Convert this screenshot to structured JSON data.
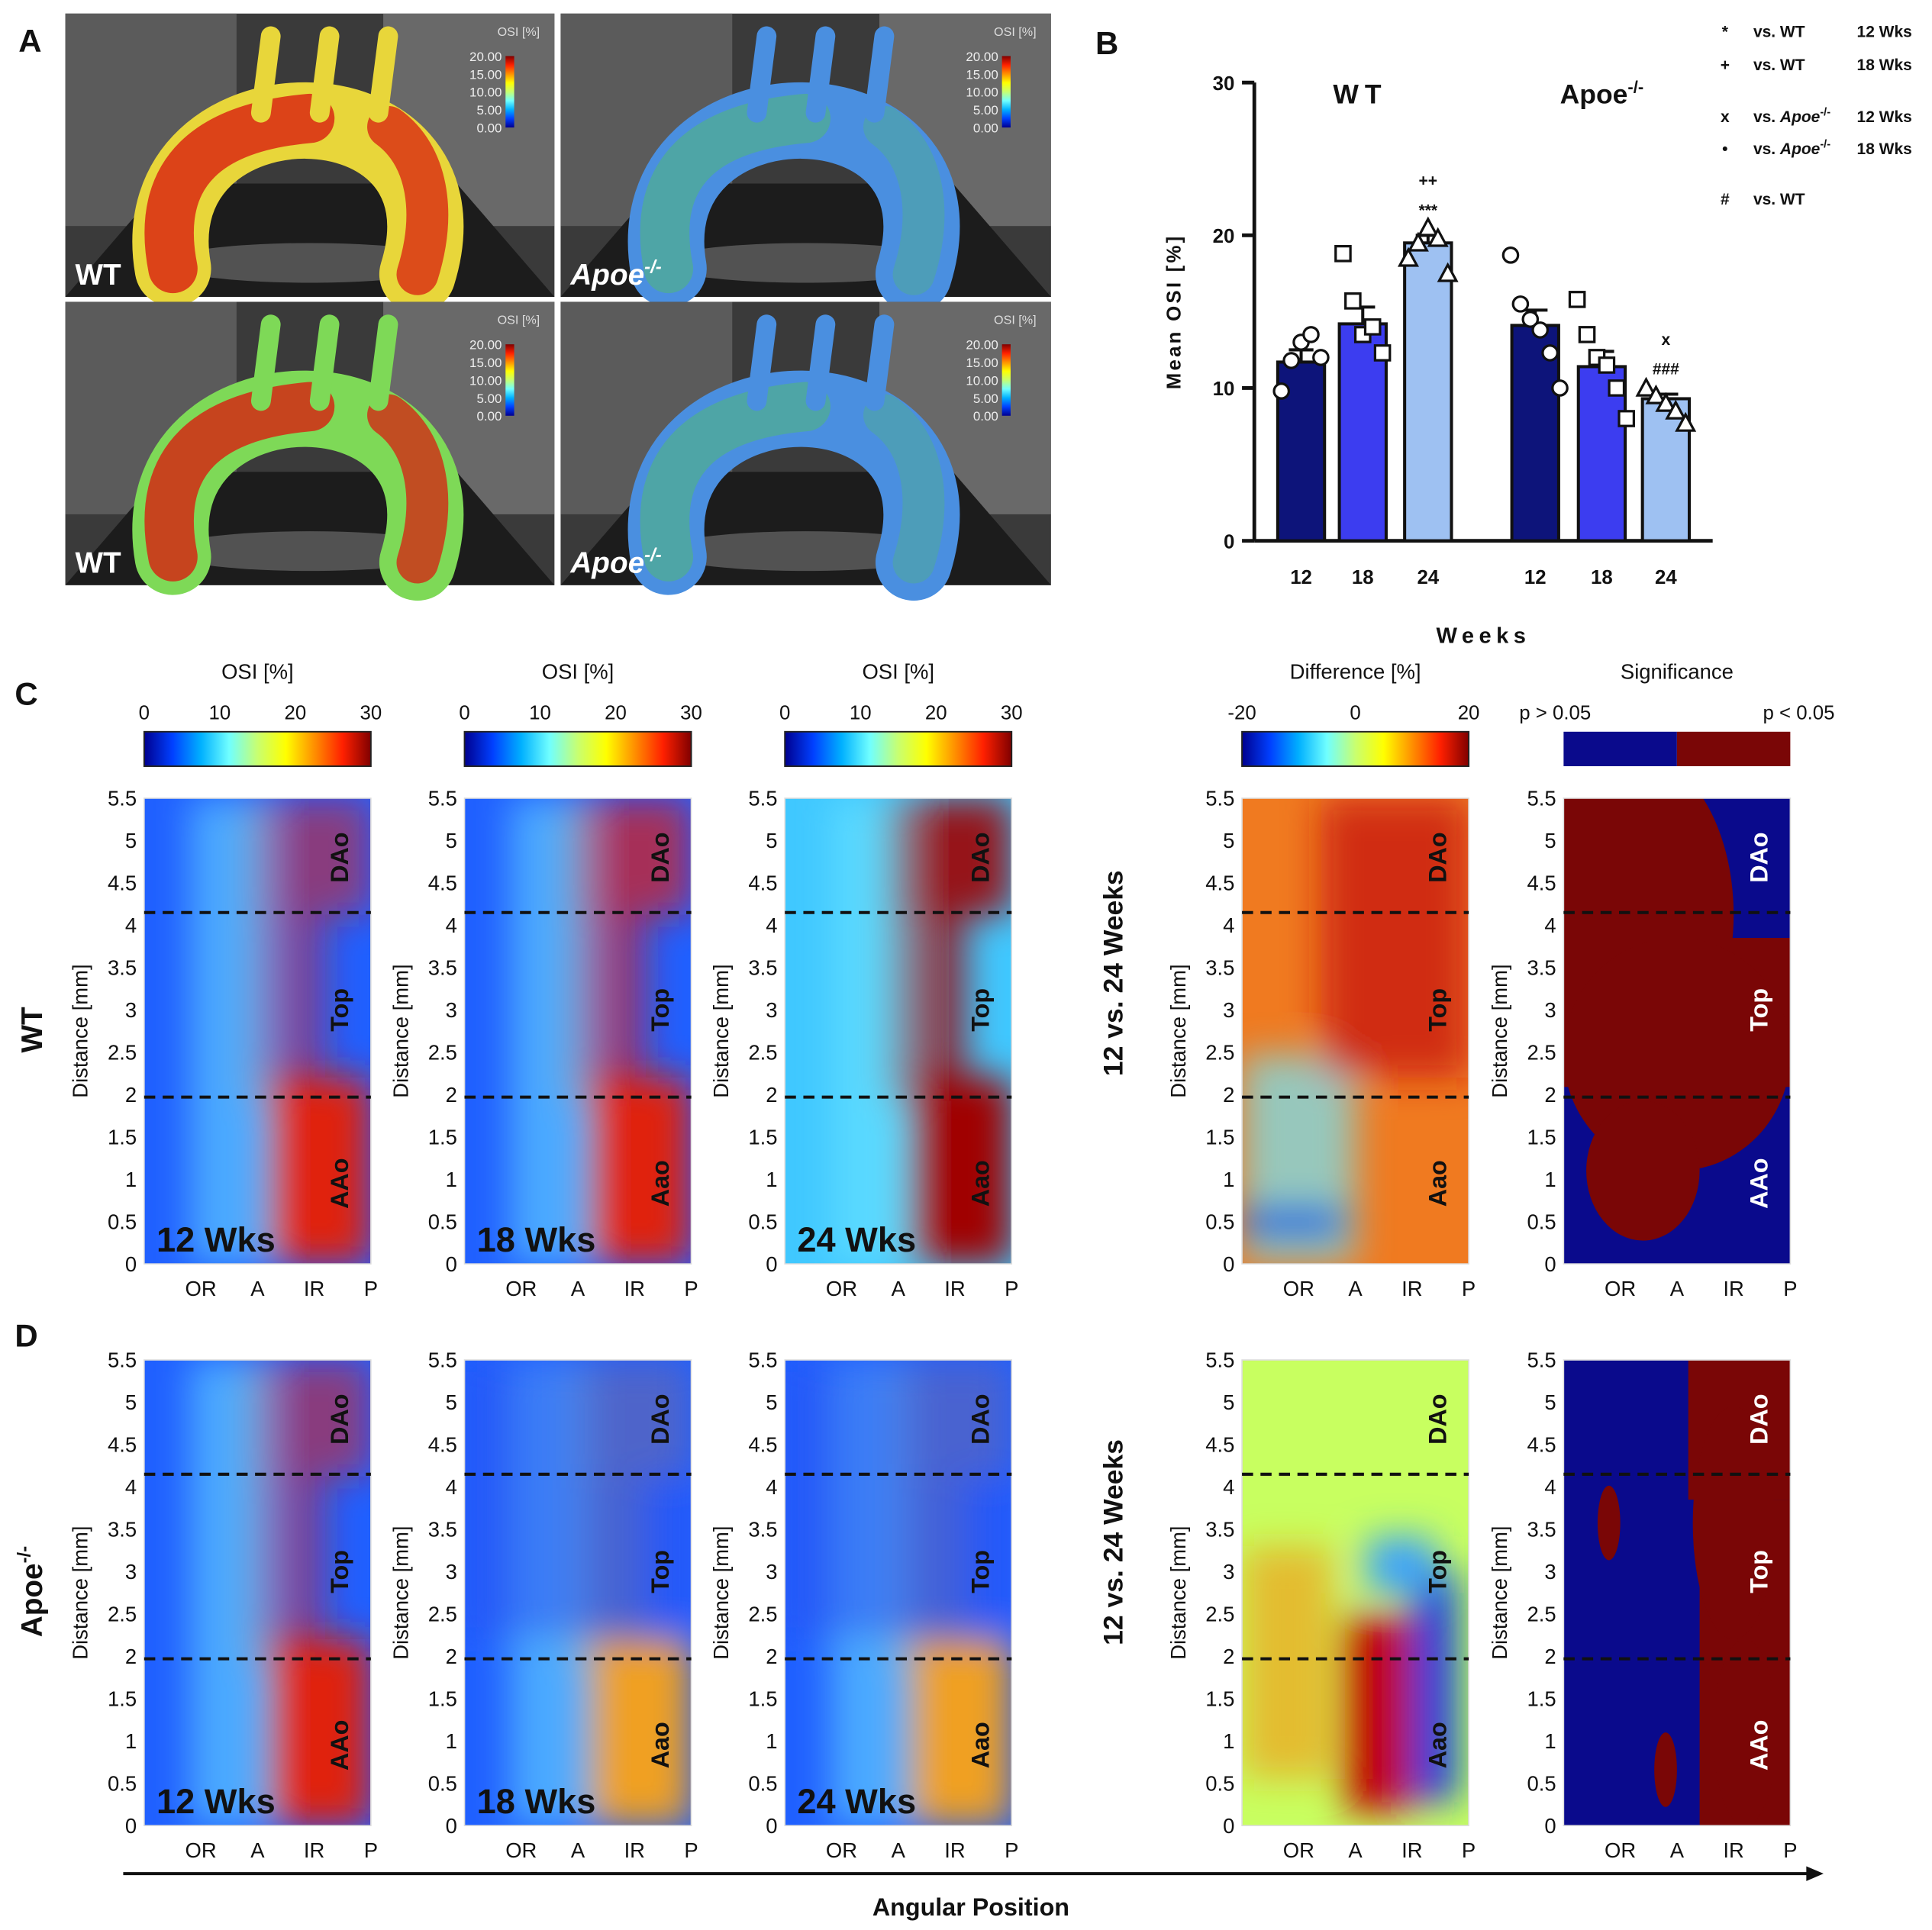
{
  "panel_letters": {
    "a": "A",
    "b": "B",
    "c": "C",
    "d": "D"
  },
  "colors": {
    "wt_12": "#0d147a",
    "wt_18": "#3c3df0",
    "wt_24": "#9ec1f2",
    "sig_low": "#0a0a8c",
    "sig_high": "#7a0606",
    "osi_scale": [
      "#00008f",
      "#0040ff",
      "#00b0ff",
      "#70ffff",
      "#c8ff70",
      "#ffff00",
      "#ff9000",
      "#ff2000",
      "#800000"
    ]
  },
  "panel_a": {
    "renders": [
      {
        "label": "WT",
        "legend_title": "OSI [%]",
        "legend_ticks": [
          "20.00",
          "15.00",
          "10.00",
          "5.00",
          "0.00"
        ],
        "dominant": "high"
      },
      {
        "label": "Apoe-/-",
        "legend_title": "OSI [%]",
        "legend_ticks": [
          "20.00",
          "15.00",
          "10.00",
          "5.00",
          "0.00"
        ],
        "dominant": "low"
      },
      {
        "label": "WT",
        "legend_title": "OSI [%]",
        "legend_ticks": [
          "20.00",
          "15.00",
          "10.00",
          "5.00",
          "0.00"
        ],
        "dominant": "mid"
      },
      {
        "label": "Apoe-/-",
        "legend_title": "OSI [%]",
        "legend_ticks": [
          "20.00",
          "15.00",
          "10.00",
          "5.00",
          "0.00"
        ],
        "dominant": "low"
      }
    ]
  },
  "chart_data": [
    {
      "id": "panel-b",
      "type": "bar",
      "ylabel": "Mean OSI [%]",
      "xlabel": "Weeks",
      "ylim": [
        0,
        30
      ],
      "yticks": [
        0,
        10,
        20,
        30
      ],
      "groups": [
        {
          "name": "WT",
          "superscript": ""
        },
        {
          "name": "Apoe",
          "superscript": "-/-"
        }
      ],
      "categories": [
        "12",
        "18",
        "24"
      ],
      "series": [
        {
          "name": "WT",
          "values": [
            11.7,
            14.2,
            19.5
          ],
          "errors": [
            0.8,
            1.1,
            0.5
          ],
          "points": [
            [
              9.8,
              11.8,
              13.0,
              13.5,
              12.0
            ],
            [
              18.8,
              15.7,
              13.5,
              14.0,
              12.3
            ],
            [
              18.5,
              19.5,
              20.5,
              19.8,
              17.5
            ]
          ],
          "annotations": [
            "",
            "",
            "++\n***"
          ]
        },
        {
          "name": "Apoe-/-",
          "values": [
            14.1,
            11.4,
            9.3
          ],
          "errors": [
            1.0,
            1.0,
            0.3
          ],
          "points": [
            [
              18.7,
              15.5,
              14.5,
              13.8,
              12.3,
              10.0
            ],
            [
              15.8,
              13.5,
              12.0,
              11.5,
              10.0,
              8.0
            ],
            [
              10.0,
              9.5,
              9.0,
              8.5,
              7.7
            ]
          ],
          "annotations": [
            "",
            "",
            "x\n###"
          ]
        }
      ],
      "legend": [
        {
          "symbol": "*",
          "text": "vs. WT",
          "ref": "12 Wks"
        },
        {
          "symbol": "+",
          "text": "vs. WT",
          "ref": "18 Wks"
        },
        {
          "symbol": "x",
          "text": "vs. Apoe-/-",
          "ref": "12 Wks"
        },
        {
          "symbol": "•",
          "text": "vs. Apoe-/-",
          "ref": "18 Wks"
        },
        {
          "symbol": "#",
          "text": "vs. WT",
          "ref": ""
        }
      ]
    },
    {
      "id": "panel-cd",
      "type": "heatmap",
      "yaxis": {
        "label": "Distance [mm]",
        "ticks": [
          "0",
          "0.5",
          "1",
          "1.5",
          "2",
          "2.5",
          "3",
          "3.5",
          "4",
          "4.5",
          "5",
          "5.5"
        ],
        "range": [
          0,
          5.5
        ]
      },
      "xaxis": {
        "label": "Angular Position",
        "ticks": [
          "OR",
          "A",
          "IR",
          "P"
        ]
      },
      "boundaries_mm": [
        1.97,
        4.15
      ],
      "colorbars": [
        {
          "title": "OSI [%]",
          "ticks": [
            "0",
            "10",
            "20",
            "30"
          ],
          "range": [
            0,
            30
          ]
        },
        {
          "title": "OSI [%]",
          "ticks": [
            "0",
            "10",
            "20",
            "30"
          ],
          "range": [
            0,
            30
          ]
        },
        {
          "title": "OSI [%]",
          "ticks": [
            "0",
            "10",
            "20",
            "30"
          ],
          "range": [
            0,
            30
          ]
        },
        {
          "title": "Difference [%]",
          "ticks": [
            "-20",
            "0",
            "20"
          ],
          "range": [
            -20,
            20
          ]
        },
        {
          "title": "Significance",
          "left_label": "p > 0.05",
          "right_label": "p < 0.05"
        }
      ],
      "row_labels": [
        "WT",
        "Apoe-/-"
      ],
      "comparison_label": "12 vs. 24 Weeks",
      "rows": [
        {
          "genotype": "WT",
          "maps": [
            {
              "title": "12 Wks",
              "kind": "osi",
              "regions": [
                "DAo",
                "Top",
                "AAo"
              ],
              "intensity": 0.55
            },
            {
              "title": "18 Wks",
              "kind": "osi",
              "regions": [
                "DAo",
                "Top",
                "Aao"
              ],
              "intensity": 0.7
            },
            {
              "title": "24 Wks",
              "kind": "osi",
              "regions": [
                "DAo",
                "Top",
                "Aao"
              ],
              "intensity": 0.9
            },
            {
              "title": "",
              "kind": "difference",
              "regions": [
                "DAo",
                "Top",
                "Aao"
              ],
              "intensity": 0.8
            },
            {
              "title": "",
              "kind": "significance",
              "regions": [
                "DAo",
                "Top",
                "AAo"
              ],
              "intensity": 0.7
            }
          ]
        },
        {
          "genotype": "Apoe-/-",
          "maps": [
            {
              "title": "12 Wks",
              "kind": "osi",
              "regions": [
                "DAo",
                "Top",
                "AAo"
              ],
              "intensity": 0.55
            },
            {
              "title": "18 Wks",
              "kind": "osi",
              "regions": [
                "DAo",
                "Top",
                "Aao"
              ],
              "intensity": 0.4
            },
            {
              "title": "24 Wks",
              "kind": "osi",
              "regions": [
                "DAo",
                "Top",
                "Aao"
              ],
              "intensity": 0.35
            },
            {
              "title": "",
              "kind": "difference",
              "regions": [
                "DAo",
                "Top",
                "Aao"
              ],
              "intensity": 0.5
            },
            {
              "title": "",
              "kind": "significance",
              "regions": [
                "DAo",
                "Top",
                "AAo"
              ],
              "intensity": 0.3
            }
          ]
        }
      ]
    }
  ]
}
